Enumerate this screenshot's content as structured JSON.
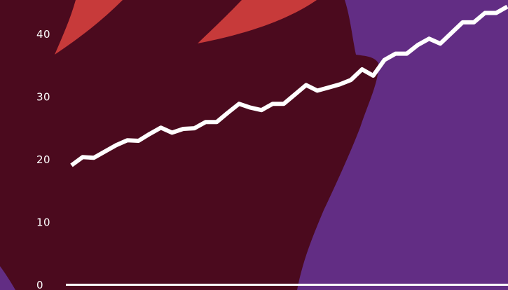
{
  "colors": {
    "background": "#622D84",
    "backdrop_main": "#4B0A1E",
    "backdrop_accent": "#C73A3A",
    "line": "#FFFFFF",
    "baseline": "#FFFFFF",
    "tick_text": "#FFFFFF"
  },
  "chart_data": {
    "type": "line",
    "title": "",
    "xlabel": "",
    "ylabel": "",
    "ylim": [
      0,
      40
    ],
    "y_ticks": [
      "0",
      "10",
      "20",
      "30",
      "40"
    ],
    "grid": false,
    "legend": "none",
    "series": [
      {
        "values": [
          19,
          20.3,
          20.2,
          21.2,
          22.2,
          23.0,
          22.9,
          24.0,
          25.0,
          24.2,
          24.8,
          24.9,
          25.9,
          25.9,
          27.4,
          28.8,
          28.2,
          27.8,
          28.8,
          28.8,
          30.3,
          31.8,
          30.9,
          31.4,
          31.9,
          32.6,
          34.3,
          33.3,
          35.8,
          36.8,
          36.8,
          38.2,
          39.2,
          38.4,
          40.1,
          41.8,
          41.8,
          43.3,
          43.3,
          44.3
        ]
      }
    ]
  }
}
